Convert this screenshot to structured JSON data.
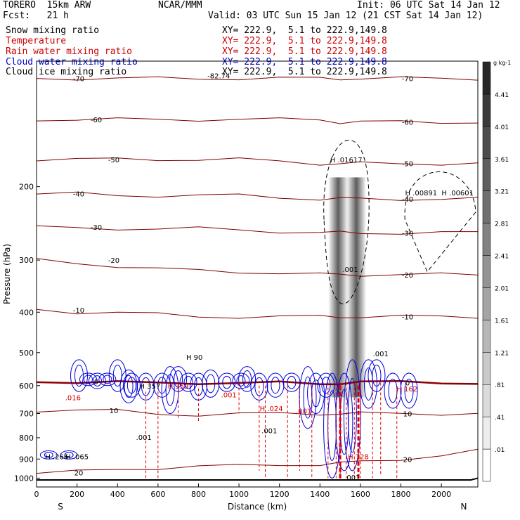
{
  "header": {
    "model": "TORERO  15km ARW",
    "center": "NCAR/MMM",
    "init": "Init: 06 UTC Sat 14 Jan 12",
    "fcst": "Fcst:   21 h",
    "valid": "Valid: 03 UTC Sun 15 Jan 12 (21 CST Sat 14 Jan 12)"
  },
  "legend": [
    {
      "label": "Snow mixing ratio",
      "xy": "XY= 222.9,  5.1 to 222.9,149.8",
      "color": "#000000"
    },
    {
      "label": "Temperature",
      "xy": "XY= 222.9,  5.1 to 222.9,149.8",
      "color": "#cc0000"
    },
    {
      "label": "Rain water mixing ratio",
      "xy": "XY= 222.9,  5.1 to 222.9,149.8",
      "color": "#cc0000"
    },
    {
      "label": "Cloud water mixing ratio",
      "xy": "XY= 222.9,  5.1 to 222.9,149.8",
      "color": "#0000cc"
    },
    {
      "label": "Cloud ice mixing ratio",
      "xy": "XY= 222.9,  5.1 to 222.9,149.8",
      "color": "#000000"
    }
  ],
  "chart_data": {
    "type": "line",
    "title": "Temperature",
    "xlabel": "Distance (km)",
    "ylabel": "Pressure (hPa)",
    "xlim": [
      0,
      2180
    ],
    "ylim": [
      1050,
      100
    ],
    "yscale": "log",
    "xticks": [
      0,
      200,
      400,
      600,
      800,
      1000,
      1200,
      1400,
      1600,
      1800,
      2000
    ],
    "yticks": [
      200,
      300,
      400,
      500,
      600,
      700,
      800,
      900,
      1000
    ],
    "end_labels": {
      "left": "S",
      "right": "N"
    },
    "grid": false,
    "x": [
      0,
      200,
      400,
      600,
      800,
      1000,
      1200,
      1400,
      1500,
      1600,
      1800,
      2000,
      2180
    ],
    "isotherms": [
      {
        "label": "-70",
        "values": [
          110,
          110,
          110,
          110,
          110,
          110,
          110,
          110,
          110,
          110,
          110,
          110,
          110
        ]
      },
      {
        "label": "-60",
        "values": [
          138,
          138,
          138,
          138,
          138,
          138,
          138,
          138,
          140,
          140,
          140,
          140,
          140
        ]
      },
      {
        "label": "-50",
        "values": [
          172,
          172,
          172,
          172,
          172,
          172,
          174,
          176,
          176,
          176,
          176,
          176,
          176
        ]
      },
      {
        "label": "-40",
        "values": [
          208,
          208,
          210,
          210,
          210,
          210,
          212,
          214,
          214,
          214,
          214,
          214,
          214
        ]
      },
      {
        "label": "-30",
        "values": [
          250,
          252,
          252,
          252,
          252,
          254,
          256,
          258,
          258,
          258,
          258,
          258,
          258
        ]
      },
      {
        "label": "-20",
        "values": [
          300,
          305,
          310,
          315,
          318,
          320,
          322,
          325,
          325,
          325,
          325,
          325,
          325
        ]
      },
      {
        "label": "-10",
        "values": [
          395,
          400,
          400,
          405,
          410,
          410,
          410,
          410,
          410,
          410,
          410,
          410,
          410
        ]
      },
      {
        "label": "0",
        "values": [
          585,
          588,
          590,
          592,
          590,
          590,
          592,
          595,
          590,
          588,
          590,
          590,
          590
        ]
      },
      {
        "label": "10",
        "values": [
          688,
          688,
          690,
          700,
          705,
          702,
          700,
          700,
          700,
          700,
          700,
          700,
          700
        ]
      },
      {
        "label": "20",
        "values": [
          970,
          965,
          955,
          945,
          935,
          935,
          930,
          925,
          920,
          915,
          900,
          880,
          860
        ]
      }
    ],
    "annotations": [
      "-82.74",
      "H .01617",
      "H .00891",
      "H .00601",
      ".001",
      "H 90",
      ".001",
      "H 357",
      "H 359",
      ".016",
      ".001",
      "H .024",
      ".001",
      "H 162",
      "H 728",
      "H .266",
      "H .065",
      ".001",
      ".001",
      ".001"
    ],
    "colorbar": {
      "unit": "g kg-1",
      "ticks": [
        ".01",
        ".41",
        ".81",
        "1.21",
        "1.61",
        "2.01",
        "2.41",
        "2.81",
        "3.21",
        "3.61",
        "4.01",
        "4.41"
      ]
    },
    "colors": {
      "temperature": "#800000",
      "freezing": "#8b0000",
      "rain": "#dd0000",
      "cloudwater": "#0000dd",
      "ice": "#000000"
    }
  }
}
